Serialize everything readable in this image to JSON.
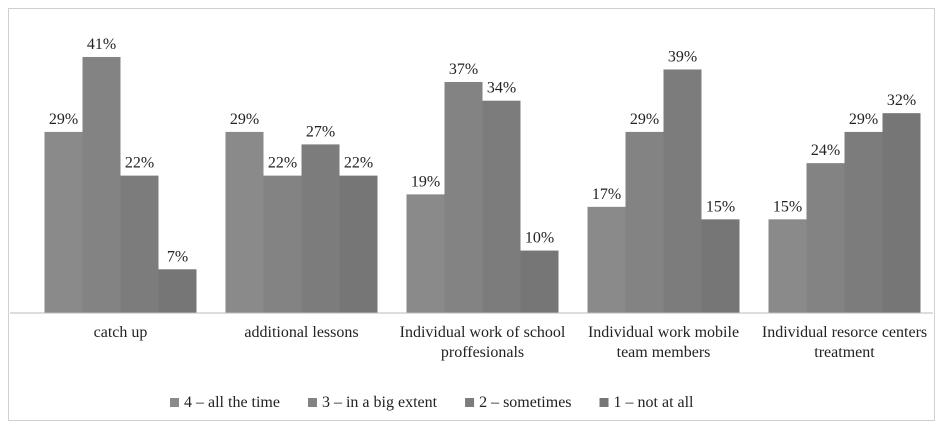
{
  "chart_data": {
    "type": "bar",
    "categories": [
      "catch up",
      "additional lessons",
      "Individual work of school proffesionals",
      "Individual work mobile team members",
      "Individual resorce centers treatment"
    ],
    "series": [
      {
        "name": "4 – all the time",
        "color": "#8a8a8a",
        "values": [
          29,
          29,
          19,
          17,
          15
        ],
        "value_labels": [
          "29%",
          "29%",
          "19%",
          "17%",
          "15%"
        ]
      },
      {
        "name": "3 – in a big extent",
        "color": "#838383",
        "values": [
          41,
          22,
          37,
          29,
          24
        ],
        "value_labels": [
          "41%",
          "22%",
          "37%",
          "29%",
          "24%"
        ]
      },
      {
        "name": "2 – sometimes",
        "color": "#7c7c7c",
        "values": [
          22,
          27,
          34,
          39,
          29
        ],
        "value_labels": [
          "22%",
          "27%",
          "34%",
          "39%",
          "29%"
        ]
      },
      {
        "name": "1 – not at all",
        "color": "#767676",
        "values": [
          7,
          22,
          10,
          15,
          32
        ],
        "value_labels": [
          "7%",
          "22%",
          "10%",
          "15%",
          "32%"
        ]
      }
    ],
    "ylim": [
      0,
      45
    ],
    "legend": "bottom"
  }
}
